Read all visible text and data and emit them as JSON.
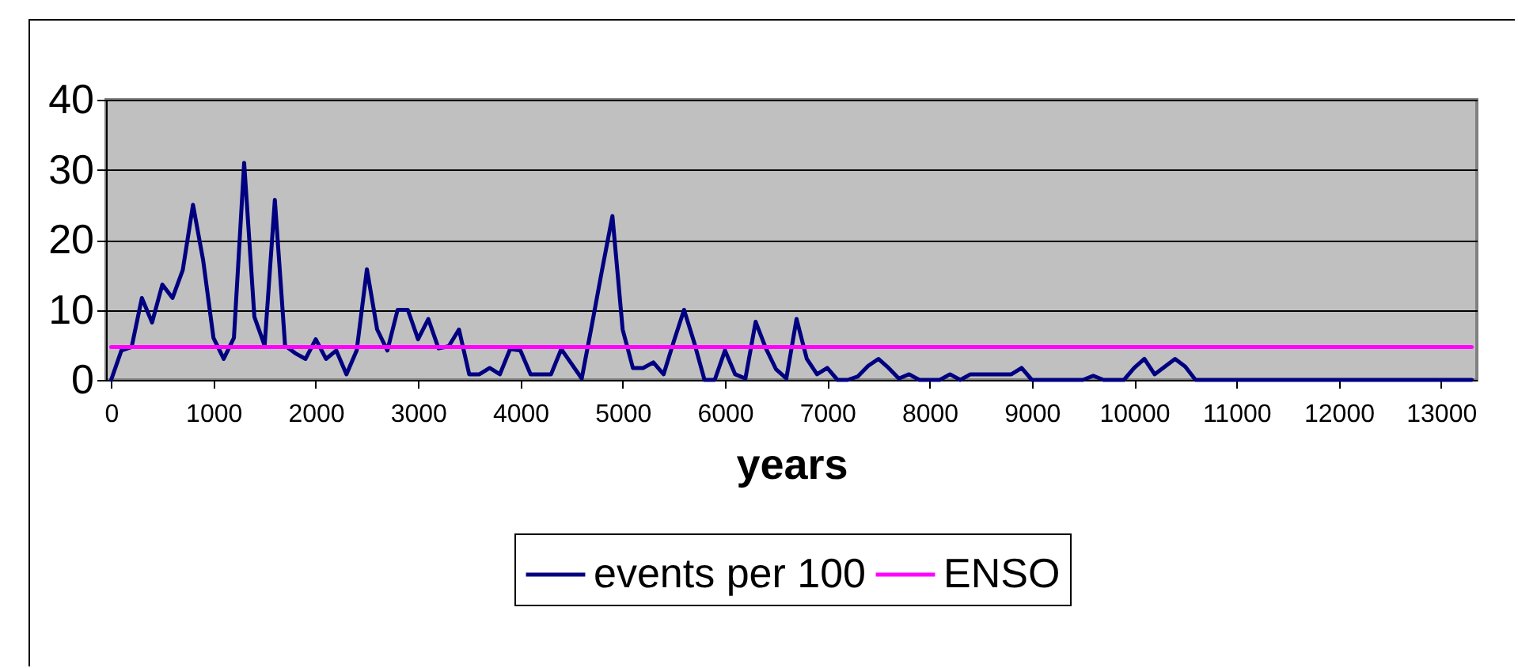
{
  "chart_data": {
    "type": "line",
    "xlabel": "years",
    "x": [
      0,
      100,
      200,
      300,
      400,
      500,
      600,
      700,
      800,
      900,
      1000,
      1100,
      1200,
      1300,
      1400,
      1500,
      1600,
      1700,
      1800,
      1900,
      2000,
      2100,
      2200,
      2300,
      2400,
      2500,
      2600,
      2700,
      2800,
      2900,
      3000,
      3100,
      3200,
      3300,
      3400,
      3500,
      3600,
      3700,
      3800,
      3900,
      4000,
      4100,
      4200,
      4300,
      4400,
      4500,
      4600,
      4700,
      4800,
      4900,
      5000,
      5100,
      5200,
      5300,
      5400,
      5500,
      5600,
      5700,
      5800,
      5900,
      6000,
      6100,
      6200,
      6300,
      6400,
      6500,
      6600,
      6700,
      6800,
      6900,
      7000,
      7100,
      7200,
      7300,
      7400,
      7500,
      7600,
      7700,
      7800,
      7900,
      8000,
      8100,
      8200,
      8300,
      8400,
      8500,
      8600,
      8700,
      8800,
      8900,
      9000,
      9100,
      9200,
      9300,
      9400,
      9500,
      9600,
      9700,
      9800,
      9900,
      10000,
      10100,
      10200,
      10300,
      10400,
      10500,
      10600,
      10700,
      10800,
      10900,
      11000,
      11100,
      11200,
      11300,
      11400,
      11500,
      11600,
      11700,
      11800,
      11900,
      12000,
      12100,
      12200,
      12300,
      12400,
      12500,
      12600,
      12700,
      12800,
      12900,
      13000,
      13100,
      13200,
      13300
    ],
    "series": [
      {
        "name": "events per 100",
        "color": "#000080",
        "values": [
          0,
          4.2,
          4.7,
          11.7,
          8.2,
          13.6,
          11.7,
          15.7,
          25,
          17,
          6,
          3,
          6,
          31,
          9,
          4.9,
          25.7,
          4.9,
          3.8,
          3,
          5.8,
          3,
          4.2,
          0.8,
          4.2,
          15.8,
          7.2,
          4.2,
          10,
          10,
          5.8,
          8.7,
          4.5,
          4.8,
          7.2,
          0.8,
          0.8,
          1.7,
          0.8,
          4.4,
          4.2,
          0.8,
          0.8,
          0.8,
          4.4,
          2.3,
          0.2,
          7.9,
          15.8,
          23.4,
          7.2,
          1.7,
          1.7,
          2.5,
          0.8,
          5.5,
          10,
          5.3,
          0,
          0,
          4.2,
          0.8,
          0.2,
          8.3,
          4.5,
          1.5,
          0.2,
          8.7,
          3,
          0.8,
          1.7,
          0,
          0,
          0.5,
          2,
          3,
          1.7,
          0.2,
          0.8,
          0,
          0,
          0,
          0.8,
          0,
          0.8,
          0.8,
          0.8,
          0.8,
          0.8,
          1.7,
          0,
          0,
          0,
          0,
          0,
          0,
          0.6,
          0,
          0,
          0,
          1.7,
          3,
          0.8,
          1.9,
          3,
          1.9,
          0,
          0,
          0,
          0,
          0,
          0,
          0,
          0,
          0,
          0,
          0,
          0,
          0,
          0,
          0,
          0,
          0,
          0,
          0,
          0,
          0,
          0,
          0,
          0,
          0,
          0,
          0,
          0
        ]
      },
      {
        "name": "ENSO",
        "color": "#ff00ff",
        "x": [
          0,
          13300
        ],
        "values": [
          4.7,
          4.7
        ]
      }
    ],
    "xlim": [
      -50,
      13350
    ],
    "xticks": [
      0,
      1000,
      2000,
      3000,
      4000,
      5000,
      6000,
      7000,
      8000,
      9000,
      10000,
      11000,
      12000,
      13000
    ],
    "ylim": [
      0,
      40
    ],
    "yticks": [
      0,
      10,
      20,
      30,
      40
    ],
    "grid": "y",
    "legend": "bottom",
    "marker": "none",
    "line_style": "solid"
  }
}
